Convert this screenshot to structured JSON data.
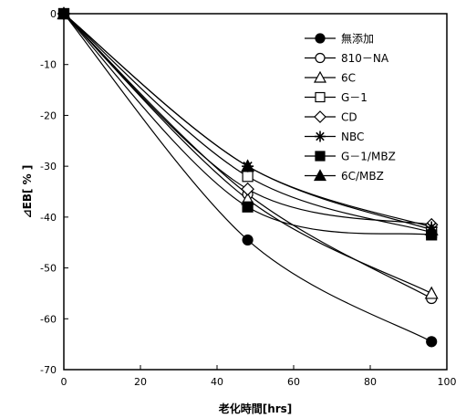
{
  "chart_data": {
    "type": "line",
    "xlabel": "老化時間[hrs]",
    "ylabel": "⊿EB[ % ]",
    "xlim": [
      0,
      100
    ],
    "ylim": [
      -70,
      0
    ],
    "x_ticks": [
      0,
      20,
      40,
      60,
      80,
      100
    ],
    "y_ticks": [
      0,
      -10,
      -20,
      -30,
      -40,
      -50,
      -60,
      -70
    ],
    "grid": false,
    "legend_position": "top-right",
    "x": [
      0,
      48,
      96
    ],
    "series": [
      {
        "name": "無添加",
        "marker": "filled-circle",
        "values": [
          0,
          -44.5,
          -64.5
        ]
      },
      {
        "name": "810－NA",
        "marker": "open-circle",
        "values": [
          0,
          -35.5,
          -56
        ]
      },
      {
        "name": "6C",
        "marker": "open-triangle",
        "values": [
          0,
          -36.5,
          -55
        ]
      },
      {
        "name": "G－1",
        "marker": "open-square",
        "values": [
          0,
          -32,
          -43
        ]
      },
      {
        "name": "CD",
        "marker": "open-diamond",
        "values": [
          0,
          -34.5,
          -41.5
        ]
      },
      {
        "name": "NBC",
        "marker": "asterisk",
        "values": [
          0,
          -30,
          -42
        ]
      },
      {
        "name": "G－1/MBZ",
        "marker": "filled-square",
        "values": [
          0,
          -38,
          -43.5
        ]
      },
      {
        "name": "6C/MBZ",
        "marker": "filled-triangle",
        "values": [
          0,
          -30,
          -42.5
        ]
      }
    ]
  }
}
